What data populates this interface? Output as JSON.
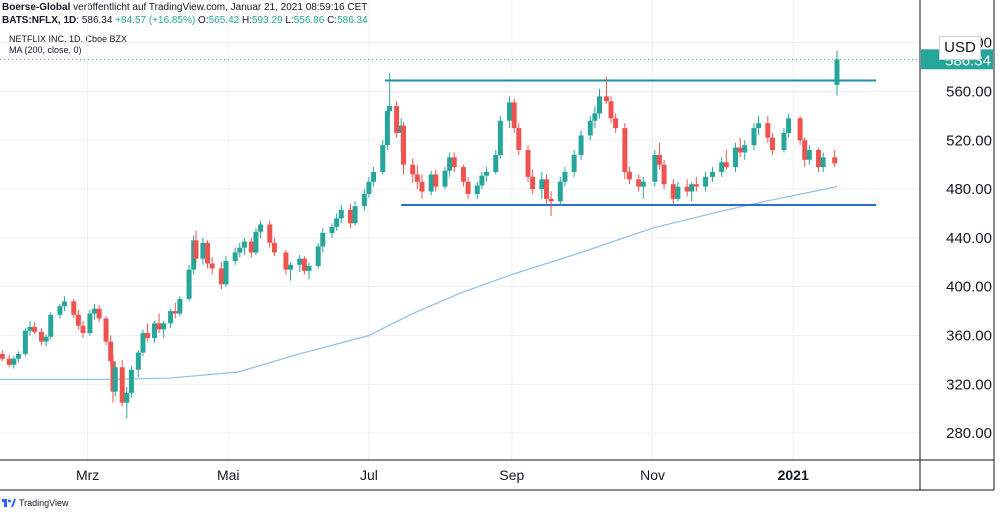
{
  "header": {
    "publisher": "Boerse-Global",
    "published_text": "veröffentlicht auf TradingView.com, Januar 21, 2021 08:59:16 CET",
    "symbol": "BATS:NFLX, 1D",
    "last": "586.34",
    "change": "+84.57 (+16.85%)",
    "o_label": "O:",
    "o": "565.42",
    "h_label": "H:",
    "h": "593.29",
    "l_label": "L:",
    "l": "556.86",
    "c_label": "C:",
    "c": "586.34"
  },
  "legend": {
    "line1": "NETFLIX INC, 1D, Cboe BZX",
    "line2": "MA (200, close, 0)"
  },
  "currency": "USD",
  "last_price_tag": "586.34",
  "brand": "TradingView",
  "colors": {
    "up": "#26a69a",
    "down": "#ef5350",
    "ma": "#90bfe8",
    "resistance": "#1a8fa6",
    "support": "#2a6fd1",
    "grid": "#eef0f3"
  },
  "chart_data": {
    "type": "candlestick",
    "title": "NETFLIX INC, 1D, Cboe BZX",
    "x_axis_ticks": [
      "Mrz",
      "Mai",
      "Jul",
      "Sep",
      "Nov",
      "2021"
    ],
    "y_axis_ticks": [
      "280.00",
      "320.00",
      "360.00",
      "400.00",
      "440.00",
      "480.00",
      "520.00",
      "560.00",
      "600.00"
    ],
    "ylim": [
      258,
      612
    ],
    "x_range": [
      "2020-01-23",
      "2021-02-25"
    ],
    "grid": true,
    "last_price": 586.34,
    "horizontal_lines": [
      {
        "name": "resistance",
        "value": 569,
        "from": "2020-07-08",
        "to": "2021-02-06"
      },
      {
        "name": "support",
        "value": 467,
        "from": "2020-07-15",
        "to": "2021-02-06"
      }
    ],
    "series": [
      {
        "name": "MA (200, close, 0)",
        "type": "line",
        "points": [
          [
            "2020-01-23",
            324
          ],
          [
            "2020-02-15",
            324
          ],
          [
            "2020-03-08",
            324
          ],
          [
            "2020-04-05",
            325
          ],
          [
            "2020-05-05",
            330
          ],
          [
            "2020-06-01",
            345
          ],
          [
            "2020-07-01",
            360
          ],
          [
            "2020-07-20",
            378
          ],
          [
            "2020-08-10",
            395
          ],
          [
            "2020-09-01",
            410
          ],
          [
            "2020-10-01",
            428
          ],
          [
            "2020-11-01",
            448
          ],
          [
            "2020-12-01",
            462
          ],
          [
            "2020-12-20",
            470
          ],
          [
            "2021-01-20",
            482
          ]
        ]
      },
      {
        "name": "NFLX",
        "type": "candlestick",
        "ohlc": [
          [
            "2020-01-24",
            345,
            348,
            339,
            341
          ],
          [
            "2020-01-27",
            341,
            344,
            334,
            336
          ],
          [
            "2020-01-29",
            336,
            343,
            333,
            341
          ],
          [
            "2020-01-31",
            341,
            347,
            338,
            345
          ],
          [
            "2020-02-03",
            345,
            366,
            343,
            364
          ],
          [
            "2020-02-05",
            364,
            372,
            360,
            367
          ],
          [
            "2020-02-07",
            367,
            371,
            361,
            363
          ],
          [
            "2020-02-10",
            363,
            366,
            352,
            355
          ],
          [
            "2020-02-12",
            355,
            361,
            351,
            359
          ],
          [
            "2020-02-14",
            359,
            379,
            357,
            377
          ],
          [
            "2020-02-18",
            377,
            386,
            374,
            384
          ],
          [
            "2020-02-20",
            384,
            392,
            380,
            388
          ],
          [
            "2020-02-24",
            388,
            390,
            374,
            377
          ],
          [
            "2020-02-26",
            377,
            381,
            365,
            368
          ],
          [
            "2020-02-28",
            368,
            372,
            358,
            362
          ],
          [
            "2020-03-02",
            362,
            381,
            360,
            378
          ],
          [
            "2020-03-04",
            378,
            386,
            373,
            382
          ],
          [
            "2020-03-06",
            382,
            385,
            371,
            374
          ],
          [
            "2020-03-09",
            374,
            376,
            352,
            355
          ],
          [
            "2020-03-11",
            355,
            360,
            335,
            339
          ],
          [
            "2020-03-12",
            339,
            345,
            305,
            314
          ],
          [
            "2020-03-13",
            314,
            338,
            310,
            334
          ],
          [
            "2020-03-16",
            334,
            340,
            302,
            305
          ],
          [
            "2020-03-18",
            305,
            318,
            292,
            313
          ],
          [
            "2020-03-20",
            313,
            335,
            309,
            332
          ],
          [
            "2020-03-23",
            332,
            348,
            326,
            346
          ],
          [
            "2020-03-25",
            346,
            365,
            343,
            362
          ],
          [
            "2020-03-27",
            362,
            370,
            355,
            358
          ],
          [
            "2020-03-30",
            358,
            372,
            354,
            370
          ],
          [
            "2020-04-01",
            370,
            378,
            362,
            365
          ],
          [
            "2020-04-03",
            365,
            372,
            358,
            370
          ],
          [
            "2020-04-06",
            370,
            382,
            366,
            380
          ],
          [
            "2020-04-08",
            380,
            387,
            374,
            378
          ],
          [
            "2020-04-10",
            378,
            392,
            376,
            390
          ],
          [
            "2020-04-14",
            390,
            418,
            388,
            414
          ],
          [
            "2020-04-16",
            414,
            442,
            410,
            438
          ],
          [
            "2020-04-17",
            438,
            446,
            420,
            423
          ],
          [
            "2020-04-20",
            423,
            440,
            418,
            436
          ],
          [
            "2020-04-22",
            436,
            438,
            415,
            419
          ],
          [
            "2020-04-24",
            419,
            424,
            410,
            415
          ],
          [
            "2020-04-28",
            415,
            420,
            398,
            402
          ],
          [
            "2020-04-30",
            402,
            425,
            400,
            421
          ],
          [
            "2020-05-04",
            421,
            432,
            418,
            428
          ],
          [
            "2020-05-06",
            428,
            436,
            424,
            432
          ],
          [
            "2020-05-08",
            432,
            440,
            426,
            437
          ],
          [
            "2020-05-11",
            437,
            440,
            424,
            428
          ],
          [
            "2020-05-13",
            428,
            448,
            426,
            445
          ],
          [
            "2020-05-15",
            445,
            454,
            440,
            451
          ],
          [
            "2020-05-19",
            451,
            454,
            432,
            436
          ],
          [
            "2020-05-21",
            436,
            440,
            425,
            428
          ],
          [
            "2020-05-26",
            428,
            430,
            410,
            414
          ],
          [
            "2020-05-28",
            414,
            420,
            405,
            418
          ],
          [
            "2020-06-01",
            418,
            426,
            412,
            423
          ],
          [
            "2020-06-03",
            423,
            425,
            410,
            413
          ],
          [
            "2020-06-05",
            413,
            420,
            406,
            417
          ],
          [
            "2020-06-09",
            417,
            436,
            415,
            433
          ],
          [
            "2020-06-11",
            433,
            448,
            428,
            444
          ],
          [
            "2020-06-15",
            444,
            452,
            440,
            449
          ],
          [
            "2020-06-17",
            449,
            460,
            446,
            456
          ],
          [
            "2020-06-19",
            456,
            467,
            452,
            463
          ],
          [
            "2020-06-23",
            463,
            468,
            448,
            452
          ],
          [
            "2020-06-25",
            452,
            470,
            450,
            466
          ],
          [
            "2020-06-29",
            466,
            480,
            462,
            476
          ],
          [
            "2020-07-01",
            476,
            490,
            473,
            486
          ],
          [
            "2020-07-03",
            486,
            498,
            482,
            494
          ],
          [
            "2020-07-07",
            494,
            520,
            492,
            516
          ],
          [
            "2020-07-09",
            516,
            548,
            512,
            544
          ],
          [
            "2020-07-10",
            544,
            575,
            540,
            548
          ],
          [
            "2020-07-13",
            548,
            552,
            522,
            526
          ],
          [
            "2020-07-15",
            526,
            538,
            510,
            532
          ],
          [
            "2020-07-16",
            532,
            535,
            492,
            500
          ],
          [
            "2020-07-20",
            500,
            505,
            485,
            492
          ],
          [
            "2020-07-22",
            492,
            500,
            480,
            486
          ],
          [
            "2020-07-24",
            486,
            492,
            472,
            478
          ],
          [
            "2020-07-28",
            478,
            495,
            475,
            492
          ],
          [
            "2020-07-30",
            492,
            496,
            478,
            482
          ],
          [
            "2020-08-03",
            482,
            498,
            480,
            495
          ],
          [
            "2020-08-05",
            495,
            510,
            490,
            506
          ],
          [
            "2020-08-07",
            506,
            510,
            494,
            498
          ],
          [
            "2020-08-11",
            498,
            500,
            482,
            486
          ],
          [
            "2020-08-13",
            486,
            490,
            472,
            476
          ],
          [
            "2020-08-17",
            476,
            486,
            472,
            483
          ],
          [
            "2020-08-19",
            483,
            494,
            480,
            491
          ],
          [
            "2020-08-21",
            491,
            498,
            486,
            494
          ],
          [
            "2020-08-25",
            494,
            512,
            492,
            508
          ],
          [
            "2020-08-27",
            508,
            540,
            505,
            536
          ],
          [
            "2020-08-31",
            536,
            556,
            530,
            551
          ],
          [
            "2020-09-02",
            551,
            554,
            526,
            530
          ],
          [
            "2020-09-04",
            530,
            534,
            508,
            512
          ],
          [
            "2020-09-08",
            512,
            516,
            486,
            490
          ],
          [
            "2020-09-10",
            490,
            496,
            476,
            480
          ],
          [
            "2020-09-14",
            480,
            494,
            472,
            488
          ],
          [
            "2020-09-16",
            488,
            492,
            468,
            472
          ],
          [
            "2020-09-18",
            472,
            478,
            458,
            470
          ],
          [
            "2020-09-22",
            470,
            490,
            466,
            486
          ],
          [
            "2020-09-24",
            486,
            498,
            482,
            494
          ],
          [
            "2020-09-28",
            494,
            512,
            490,
            508
          ],
          [
            "2020-10-01",
            508,
            528,
            504,
            524
          ],
          [
            "2020-10-05",
            524,
            540,
            520,
            536
          ],
          [
            "2020-10-07",
            536,
            548,
            530,
            542
          ],
          [
            "2020-10-09",
            542,
            562,
            538,
            556
          ],
          [
            "2020-10-12",
            556,
            572,
            550,
            552
          ],
          [
            "2020-10-14",
            552,
            556,
            534,
            538
          ],
          [
            "2020-10-16",
            538,
            542,
            526,
            530
          ],
          [
            "2020-10-20",
            530,
            534,
            488,
            494
          ],
          [
            "2020-10-22",
            494,
            498,
            484,
            488
          ],
          [
            "2020-10-26",
            488,
            492,
            478,
            482
          ],
          [
            "2020-10-28",
            482,
            490,
            472,
            486
          ],
          [
            "2020-11-02",
            486,
            512,
            482,
            508
          ],
          [
            "2020-11-04",
            508,
            518,
            496,
            500
          ],
          [
            "2020-11-06",
            500,
            504,
            480,
            484
          ],
          [
            "2020-11-10",
            484,
            488,
            468,
            472
          ],
          [
            "2020-11-12",
            472,
            486,
            470,
            482
          ],
          [
            "2020-11-16",
            482,
            488,
            474,
            478
          ],
          [
            "2020-11-18",
            478,
            486,
            470,
            484
          ],
          [
            "2020-11-20",
            484,
            490,
            478,
            482
          ],
          [
            "2020-11-24",
            482,
            494,
            478,
            490
          ],
          [
            "2020-11-27",
            490,
            498,
            486,
            494
          ],
          [
            "2020-12-01",
            494,
            506,
            490,
            502
          ],
          [
            "2020-12-03",
            502,
            512,
            496,
            498
          ],
          [
            "2020-12-07",
            498,
            518,
            494,
            514
          ],
          [
            "2020-12-09",
            514,
            522,
            506,
            510
          ],
          [
            "2020-12-11",
            510,
            520,
            504,
            516
          ],
          [
            "2020-12-15",
            516,
            534,
            512,
            530
          ],
          [
            "2020-12-17",
            530,
            540,
            524,
            534
          ],
          [
            "2020-12-21",
            534,
            540,
            518,
            522
          ],
          [
            "2020-12-23",
            522,
            526,
            508,
            512
          ],
          [
            "2020-12-28",
            512,
            530,
            510,
            526
          ],
          [
            "2020-12-30",
            526,
            542,
            522,
            538
          ],
          [
            "2021-01-04",
            538,
            540,
            516,
            520
          ],
          [
            "2021-01-06",
            520,
            522,
            498,
            504
          ],
          [
            "2021-01-08",
            504,
            516,
            500,
            512
          ],
          [
            "2021-01-12",
            512,
            514,
            494,
            498
          ],
          [
            "2021-01-14",
            498,
            510,
            494,
            506
          ],
          [
            "2021-01-19",
            506,
            512,
            498,
            501
          ],
          [
            "2021-01-20",
            565.42,
            593.29,
            556.86,
            586.34
          ]
        ]
      }
    ]
  }
}
